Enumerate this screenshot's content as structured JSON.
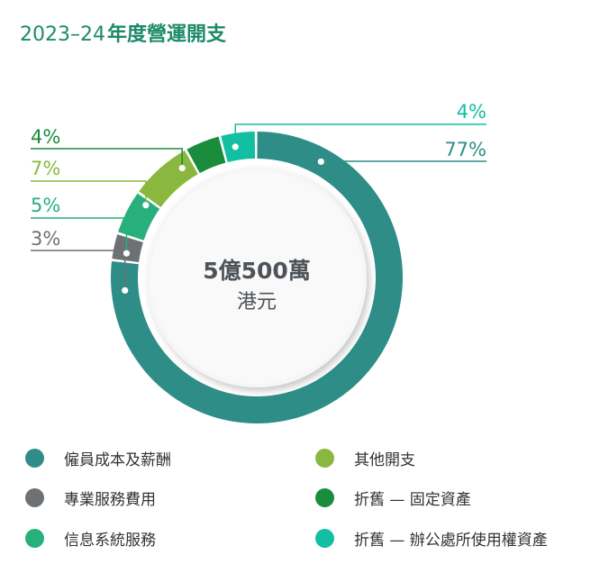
{
  "title": {
    "year": "2023–24",
    "text": "年度營運開支"
  },
  "chart_data": {
    "type": "pie",
    "donut": true,
    "center_value": "5億500萬",
    "center_unit": "港元",
    "categories": [
      "僱員成本及薪酬",
      "專業服務費用",
      "信息系統服務",
      "其他開支",
      "折舊 — 固定資產",
      "折舊 — 辦公處所使用權資產"
    ],
    "values": [
      77,
      3,
      5,
      7,
      4,
      4
    ],
    "labels": [
      "77%",
      "3%",
      "5%",
      "7%",
      "4%",
      "4%"
    ],
    "colors": [
      "#2e8d87",
      "#6e7174",
      "#27b07b",
      "#8ab83f",
      "#1a8c3c",
      "#12bfa3"
    ]
  },
  "legend": [
    {
      "label": "僱員成本及薪酬",
      "color": "#2e8d87"
    },
    {
      "label": "專業服務費用",
      "color": "#6e7174"
    },
    {
      "label": "信息系統服務",
      "color": "#27b07b"
    },
    {
      "label": "其他開支",
      "color": "#8ab83f"
    },
    {
      "label": "折舊 — 固定資產",
      "color": "#1a8c3c"
    },
    {
      "label": "折舊 — 辦公處所使用權資產",
      "color": "#12bfa3"
    }
  ]
}
